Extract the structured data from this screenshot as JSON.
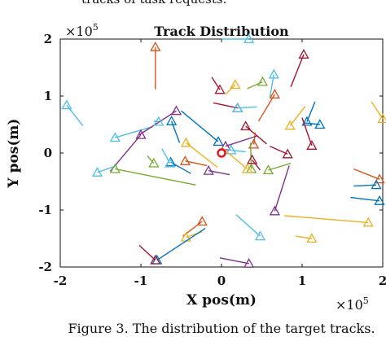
{
  "top_cropped_text": "tracks of task requests.",
  "caption": "Figure 3.    The distribution of the target tracks.",
  "chart_data": {
    "type": "scatter",
    "title": "Track Distribution",
    "xlabel": "X pos(m)",
    "ylabel": "Y pos(m)",
    "x_multiplier_base": "×10",
    "x_multiplier_exp": "5",
    "y_multiplier_base": "×10",
    "y_multiplier_exp": "5",
    "xlim": [
      -2,
      2
    ],
    "ylim": [
      -2,
      2
    ],
    "xticks": [
      -2,
      -1,
      0,
      1,
      2
    ],
    "yticks": [
      -2,
      -1,
      0,
      1,
      2
    ],
    "xtick_labels": [
      "-2",
      "-1",
      "0",
      "1",
      "2"
    ],
    "ytick_labels": [
      "-2",
      "-1",
      "0",
      "1",
      "2"
    ],
    "grid": false,
    "marker": "triangle (track start), line segment (track)",
    "origin_marker": {
      "x": 0,
      "y": 0,
      "color": "#e8101a",
      "shape": "circle"
    },
    "colors": [
      "#0072bd",
      "#d95319",
      "#edb120",
      "#7e2f8e",
      "#77ac30",
      "#4dbeee",
      "#a2142f"
    ],
    "tracks": [
      {
        "x0": -1.92,
        "y0": 0.84,
        "x1": -1.72,
        "y1": 0.48,
        "color": "#4dbeee"
      },
      {
        "x0": -0.82,
        "y0": 1.86,
        "x1": -0.82,
        "y1": 1.12,
        "color": "#d95319"
      },
      {
        "x0": 0.34,
        "y0": 2.0,
        "x1": 0.0,
        "y1": 2.0,
        "color": "#4dbeee"
      },
      {
        "x0": 1.02,
        "y0": 1.73,
        "x1": 0.86,
        "y1": 1.16,
        "color": "#a2142f"
      },
      {
        "x0": 0.65,
        "y0": 1.38,
        "x1": 0.6,
        "y1": 0.98,
        "color": "#4dbeee"
      },
      {
        "x0": -0.02,
        "y0": 1.11,
        "x1": -0.12,
        "y1": 1.33,
        "color": "#a2142f"
      },
      {
        "x0": 0.17,
        "y0": 1.2,
        "x1": 0.05,
        "y1": 1.03,
        "color": "#edb120"
      },
      {
        "x0": 0.51,
        "y0": 1.25,
        "x1": 0.32,
        "y1": 1.13,
        "color": "#77ac30"
      },
      {
        "x0": 0.2,
        "y0": 0.79,
        "x1": -0.1,
        "y1": 0.88,
        "color": "#a2142f"
      },
      {
        "x0": 0.2,
        "y0": 0.79,
        "x1": 0.44,
        "y1": 0.81,
        "color": "#4dbeee"
      },
      {
        "x0": 0.66,
        "y0": 1.03,
        "x1": 0.46,
        "y1": 0.56,
        "color": "#d95319"
      },
      {
        "x0": 1.06,
        "y0": 0.55,
        "x1": 1.16,
        "y1": 0.9,
        "color": "#0072bd"
      },
      {
        "x0": 1.22,
        "y0": 0.5,
        "x1": 1.02,
        "y1": 0.53,
        "color": "#0072bd"
      },
      {
        "x0": 2.0,
        "y0": 0.6,
        "x1": 1.86,
        "y1": 0.9,
        "color": "#edb120"
      },
      {
        "x0": 0.85,
        "y0": 0.48,
        "x1": 1.04,
        "y1": 0.82,
        "color": "#edb120"
      },
      {
        "x0": -1.32,
        "y0": 0.27,
        "x1": -0.86,
        "y1": 0.46,
        "color": "#4dbeee"
      },
      {
        "x0": -1.0,
        "y0": 0.32,
        "x1": -1.38,
        "y1": -0.32,
        "color": "#7e2f8e"
      },
      {
        "x0": -0.56,
        "y0": 0.74,
        "x1": -1.02,
        "y1": 0.32,
        "color": "#7e2f8e"
      },
      {
        "x0": -0.62,
        "y0": 0.56,
        "x1": -0.52,
        "y1": 0.18,
        "color": "#0072bd"
      },
      {
        "x0": -0.78,
        "y0": 0.55,
        "x1": -0.84,
        "y1": 0.56,
        "color": "#4dbeee"
      },
      {
        "x0": 0.3,
        "y0": 0.47,
        "x1": 0.56,
        "y1": 0.16,
        "color": "#a2142f"
      },
      {
        "x0": 0.4,
        "y0": 0.15,
        "x1": 0.42,
        "y1": 0.36,
        "color": "#d95319"
      },
      {
        "x0": -0.04,
        "y0": 0.2,
        "x1": -0.5,
        "y1": 0.74,
        "color": "#0072bd"
      },
      {
        "x0": -0.44,
        "y0": 0.18,
        "x1": -0.05,
        "y1": -0.25,
        "color": "#edb120"
      },
      {
        "x0": 0.05,
        "y0": 0.12,
        "x1": 0.44,
        "y1": 0.3,
        "color": "#7e2f8e"
      },
      {
        "x0": 0.12,
        "y0": 0.05,
        "x1": 0.3,
        "y1": 0.02,
        "color": "#4dbeee"
      },
      {
        "x0": 0.37,
        "y0": -0.28,
        "x1": 0.36,
        "y1": 0.18,
        "color": "#77ac30"
      },
      {
        "x0": 0.38,
        "y0": -0.12,
        "x1": 0.48,
        "y1": -0.3,
        "color": "#a2142f"
      },
      {
        "x0": 0.32,
        "y0": -0.28,
        "x1": 0.0,
        "y1": 0.1,
        "color": "#edb120"
      },
      {
        "x0": 0.82,
        "y0": -0.02,
        "x1": 0.6,
        "y1": 0.12,
        "color": "#a2142f"
      },
      {
        "x0": 1.12,
        "y0": 0.13,
        "x1": 1.0,
        "y1": 0.62,
        "color": "#a2142f"
      },
      {
        "x0": -0.63,
        "y0": -0.16,
        "x1": -0.38,
        "y1": -0.36,
        "color": "#0072bd"
      },
      {
        "x0": -0.84,
        "y0": -0.18,
        "x1": -0.92,
        "y1": -0.05,
        "color": "#77ac30"
      },
      {
        "x0": -0.64,
        "y0": -0.18,
        "x1": -0.74,
        "y1": 0.08,
        "color": "#4dbeee"
      },
      {
        "x0": -0.45,
        "y0": -0.14,
        "x1": -0.18,
        "y1": -0.22,
        "color": "#d95319"
      },
      {
        "x0": -0.16,
        "y0": -0.31,
        "x1": 0.1,
        "y1": -0.38,
        "color": "#7e2f8e"
      },
      {
        "x0": 0.58,
        "y0": -0.3,
        "x1": 0.86,
        "y1": -0.18,
        "color": "#77ac30"
      },
      {
        "x0": -1.54,
        "y0": -0.34,
        "x1": -1.3,
        "y1": -0.22,
        "color": "#4dbeee"
      },
      {
        "x0": -1.32,
        "y0": -0.28,
        "x1": -0.32,
        "y1": -0.56,
        "color": "#77ac30"
      },
      {
        "x0": 0.66,
        "y0": -1.02,
        "x1": 0.84,
        "y1": -0.22,
        "color": "#7e2f8e"
      },
      {
        "x0": 1.96,
        "y0": -0.46,
        "x1": 1.64,
        "y1": -0.28,
        "color": "#d95319"
      },
      {
        "x0": 1.92,
        "y0": -0.56,
        "x1": 1.64,
        "y1": -0.58,
        "color": "#0072bd"
      },
      {
        "x0": 1.96,
        "y0": -0.84,
        "x1": 1.6,
        "y1": -0.78,
        "color": "#0072bd"
      },
      {
        "x0": 0.48,
        "y0": -1.46,
        "x1": 0.18,
        "y1": -1.08,
        "color": "#4dbeee"
      },
      {
        "x0": 1.82,
        "y0": -1.22,
        "x1": 0.78,
        "y1": -1.1,
        "color": "#edb120"
      },
      {
        "x0": 1.12,
        "y0": -1.5,
        "x1": 0.92,
        "y1": -1.46,
        "color": "#edb120"
      },
      {
        "x0": -0.24,
        "y0": -1.2,
        "x1": -0.48,
        "y1": -1.46,
        "color": "#d95319"
      },
      {
        "x0": -0.44,
        "y0": -1.48,
        "x1": -0.24,
        "y1": -1.38,
        "color": "#edb120"
      },
      {
        "x0": -0.8,
        "y0": -1.88,
        "x1": -0.2,
        "y1": -1.32,
        "color": "#0072bd"
      },
      {
        "x0": -0.82,
        "y0": -1.88,
        "x1": -1.02,
        "y1": -1.62,
        "color": "#a2142f"
      },
      {
        "x0": 0.34,
        "y0": -1.94,
        "x1": -0.02,
        "y1": -1.84,
        "color": "#7e2f8e"
      }
    ]
  }
}
